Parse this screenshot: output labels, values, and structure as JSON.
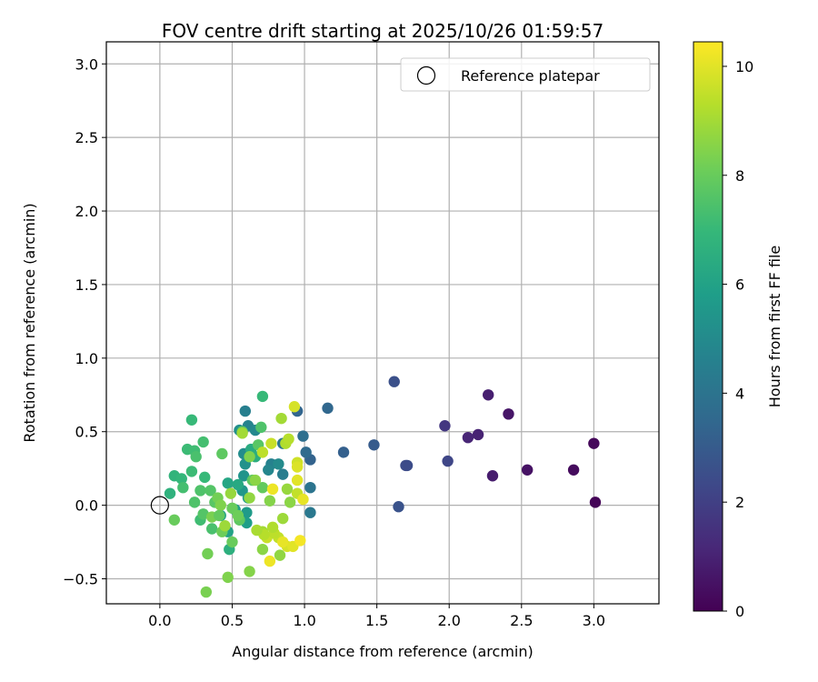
{
  "chart_data": {
    "type": "scatter",
    "title": "FOV centre drift starting at 2025/10/26 01:59:57",
    "xlabel": "Angular distance from reference (arcmin)",
    "ylabel": "Rotation from reference (arcmin)",
    "xlim": [
      -0.37,
      3.45
    ],
    "ylim": [
      -0.67,
      3.15
    ],
    "xticks": [
      0.0,
      0.5,
      1.0,
      1.5,
      2.0,
      2.5,
      3.0
    ],
    "xtick_labels": [
      "0.0",
      "0.5",
      "1.0",
      "1.5",
      "2.0",
      "2.5",
      "3.0"
    ],
    "yticks": [
      -0.5,
      0.0,
      0.5,
      1.0,
      1.5,
      2.0,
      2.5,
      3.0
    ],
    "ytick_labels": [
      "−0.5",
      "0.0",
      "0.5",
      "1.0",
      "1.5",
      "2.0",
      "2.5",
      "3.0"
    ],
    "grid": true,
    "legend": {
      "label": "Reference platepar",
      "position": "top-right"
    },
    "reference_point": {
      "x": 0.0,
      "y": 0.0
    },
    "colorbar": {
      "label": "Hours from first FF file",
      "range": [
        0,
        10.45
      ],
      "ticks": [
        0,
        2,
        4,
        6,
        8,
        10
      ],
      "tick_labels": [
        "0",
        "2",
        "4",
        "6",
        "8",
        "10"
      ],
      "colormap": "viridis"
    },
    "colormap_stops": [
      "#440154",
      "#482878",
      "#3e4989",
      "#31688e",
      "#26828e",
      "#1f9e89",
      "#35b779",
      "#6ece58",
      "#b5de2b",
      "#fde725"
    ],
    "points": [
      {
        "x": 3.01,
        "y": 0.02,
        "h": 0.1
      },
      {
        "x": 3.0,
        "y": 0.42,
        "h": 0.2
      },
      {
        "x": 2.86,
        "y": 0.24,
        "h": 0.3
      },
      {
        "x": 2.54,
        "y": 0.24,
        "h": 0.5
      },
      {
        "x": 2.41,
        "y": 0.62,
        "h": 0.6
      },
      {
        "x": 2.3,
        "y": 0.2,
        "h": 0.8
      },
      {
        "x": 2.27,
        "y": 0.75,
        "h": 0.9
      },
      {
        "x": 2.2,
        "y": 0.48,
        "h": 1.0
      },
      {
        "x": 2.13,
        "y": 0.46,
        "h": 1.1
      },
      {
        "x": 1.97,
        "y": 0.54,
        "h": 1.7
      },
      {
        "x": 1.99,
        "y": 0.3,
        "h": 2.2
      },
      {
        "x": 1.71,
        "y": 0.27,
        "h": 2.5
      },
      {
        "x": 1.62,
        "y": 0.84,
        "h": 2.6
      },
      {
        "x": 1.7,
        "y": 0.27,
        "h": 2.4
      },
      {
        "x": 1.65,
        "y": -0.01,
        "h": 2.7
      },
      {
        "x": 1.48,
        "y": 0.41,
        "h": 3.0
      },
      {
        "x": 1.27,
        "y": 0.36,
        "h": 3.2
      },
      {
        "x": 1.16,
        "y": 0.66,
        "h": 3.5
      },
      {
        "x": 1.04,
        "y": 0.31,
        "h": 3.3
      },
      {
        "x": 1.01,
        "y": 0.36,
        "h": 3.6
      },
      {
        "x": 0.99,
        "y": 0.47,
        "h": 3.8
      },
      {
        "x": 0.95,
        "y": 0.64,
        "h": 3.4
      },
      {
        "x": 1.04,
        "y": 0.12,
        "h": 4.0
      },
      {
        "x": 1.04,
        "y": -0.05,
        "h": 4.2
      },
      {
        "x": 0.85,
        "y": 0.42,
        "h": 4.1
      },
      {
        "x": 0.85,
        "y": 0.21,
        "h": 4.4
      },
      {
        "x": 0.77,
        "y": 0.28,
        "h": 4.6
      },
      {
        "x": 0.75,
        "y": 0.24,
        "h": 4.8
      },
      {
        "x": 0.82,
        "y": 0.28,
        "h": 5.0
      },
      {
        "x": 0.59,
        "y": 0.64,
        "h": 4.5
      },
      {
        "x": 0.61,
        "y": 0.54,
        "h": 4.7
      },
      {
        "x": 0.55,
        "y": 0.51,
        "h": 5.2
      },
      {
        "x": 0.66,
        "y": 0.51,
        "h": 4.9
      },
      {
        "x": 0.58,
        "y": 0.35,
        "h": 5.1
      },
      {
        "x": 0.59,
        "y": 0.28,
        "h": 5.3
      },
      {
        "x": 0.58,
        "y": 0.2,
        "h": 5.4
      },
      {
        "x": 0.57,
        "y": 0.1,
        "h": 5.5
      },
      {
        "x": 0.61,
        "y": 0.05,
        "h": 5.6
      },
      {
        "x": 0.6,
        "y": -0.05,
        "h": 5.7
      },
      {
        "x": 0.6,
        "y": -0.12,
        "h": 5.8
      },
      {
        "x": 0.52,
        "y": -0.03,
        "h": 5.9
      },
      {
        "x": 0.47,
        "y": -0.18,
        "h": 6.0
      },
      {
        "x": 0.42,
        "y": -0.07,
        "h": 6.1
      },
      {
        "x": 0.47,
        "y": 0.15,
        "h": 6.2
      },
      {
        "x": 0.54,
        "y": 0.14,
        "h": 6.3
      },
      {
        "x": 0.63,
        "y": 0.38,
        "h": 6.4
      },
      {
        "x": 0.66,
        "y": 0.33,
        "h": 6.5
      },
      {
        "x": 0.48,
        "y": -0.3,
        "h": 6.6
      },
      {
        "x": 0.07,
        "y": 0.08,
        "h": 6.7
      },
      {
        "x": 0.1,
        "y": 0.2,
        "h": 6.8
      },
      {
        "x": 0.15,
        "y": 0.18,
        "h": 6.9
      },
      {
        "x": 0.22,
        "y": 0.58,
        "h": 7.0
      },
      {
        "x": 0.19,
        "y": 0.38,
        "h": 7.1
      },
      {
        "x": 0.24,
        "y": 0.37,
        "h": 7.2
      },
      {
        "x": 0.3,
        "y": 0.43,
        "h": 7.3
      },
      {
        "x": 0.25,
        "y": 0.33,
        "h": 7.4
      },
      {
        "x": 0.22,
        "y": 0.23,
        "h": 7.1
      },
      {
        "x": 0.31,
        "y": 0.19,
        "h": 7.0
      },
      {
        "x": 0.16,
        "y": 0.12,
        "h": 7.3
      },
      {
        "x": 0.28,
        "y": 0.1,
        "h": 7.5
      },
      {
        "x": 0.35,
        "y": 0.1,
        "h": 7.6
      },
      {
        "x": 0.38,
        "y": 0.02,
        "h": 7.7
      },
      {
        "x": 0.28,
        "y": -0.1,
        "h": 7.2
      },
      {
        "x": 0.36,
        "y": -0.16,
        "h": 7.4
      },
      {
        "x": 0.3,
        "y": -0.06,
        "h": 7.6
      },
      {
        "x": 0.43,
        "y": 0.35,
        "h": 7.8
      },
      {
        "x": 0.71,
        "y": 0.74,
        "h": 7.0
      },
      {
        "x": 0.7,
        "y": 0.53,
        "h": 7.5
      },
      {
        "x": 0.57,
        "y": 0.5,
        "h": 7.9
      },
      {
        "x": 0.68,
        "y": 0.41,
        "h": 7.7
      },
      {
        "x": 0.64,
        "y": 0.17,
        "h": 7.8
      },
      {
        "x": 0.71,
        "y": 0.12,
        "h": 7.9
      },
      {
        "x": 0.5,
        "y": -0.02,
        "h": 8.0
      },
      {
        "x": 0.55,
        "y": -0.1,
        "h": 7.8
      },
      {
        "x": 0.5,
        "y": -0.25,
        "h": 8.0
      },
      {
        "x": 0.43,
        "y": -0.18,
        "h": 8.1
      },
      {
        "x": 0.33,
        "y": -0.33,
        "h": 8.2
      },
      {
        "x": 0.32,
        "y": -0.59,
        "h": 8.3
      },
      {
        "x": 0.47,
        "y": -0.49,
        "h": 8.4
      },
      {
        "x": 0.62,
        "y": -0.45,
        "h": 8.5
      },
      {
        "x": 0.71,
        "y": -0.3,
        "h": 8.6
      },
      {
        "x": 0.83,
        "y": -0.34,
        "h": 8.7
      },
      {
        "x": 0.1,
        "y": -0.1,
        "h": 8.0
      },
      {
        "x": 0.76,
        "y": 0.03,
        "h": 8.5
      },
      {
        "x": 0.88,
        "y": 0.11,
        "h": 8.8
      },
      {
        "x": 0.9,
        "y": 0.02,
        "h": 8.6
      },
      {
        "x": 0.85,
        "y": -0.09,
        "h": 8.9
      },
      {
        "x": 0.84,
        "y": 0.59,
        "h": 9.0
      },
      {
        "x": 0.87,
        "y": 0.42,
        "h": 9.2
      },
      {
        "x": 0.89,
        "y": 0.45,
        "h": 9.3
      },
      {
        "x": 0.95,
        "y": 0.08,
        "h": 9.5
      },
      {
        "x": 0.71,
        "y": 0.36,
        "h": 9.4
      },
      {
        "x": 0.77,
        "y": 0.42,
        "h": 9.6
      },
      {
        "x": 0.93,
        "y": 0.67,
        "h": 9.8
      },
      {
        "x": 0.95,
        "y": 0.29,
        "h": 9.7
      },
      {
        "x": 0.95,
        "y": 0.26,
        "h": 9.9
      },
      {
        "x": 0.95,
        "y": 0.17,
        "h": 10.0
      },
      {
        "x": 0.99,
        "y": 0.04,
        "h": 10.1
      },
      {
        "x": 0.78,
        "y": 0.11,
        "h": 10.2
      },
      {
        "x": 0.82,
        "y": -0.22,
        "h": 9.5
      },
      {
        "x": 0.88,
        "y": -0.28,
        "h": 9.8
      },
      {
        "x": 0.92,
        "y": -0.28,
        "h": 10.0
      },
      {
        "x": 0.85,
        "y": -0.25,
        "h": 10.1
      },
      {
        "x": 0.97,
        "y": -0.24,
        "h": 10.3
      },
      {
        "x": 0.76,
        "y": -0.38,
        "h": 10.2
      },
      {
        "x": 0.74,
        "y": -0.22,
        "h": 9.6
      },
      {
        "x": 0.79,
        "y": -0.19,
        "h": 9.4
      },
      {
        "x": 0.78,
        "y": -0.15,
        "h": 9.2
      },
      {
        "x": 0.71,
        "y": -0.18,
        "h": 9.0
      },
      {
        "x": 0.72,
        "y": -0.2,
        "h": 9.3
      },
      {
        "x": 0.67,
        "y": -0.17,
        "h": 9.1
      },
      {
        "x": 0.45,
        "y": -0.14,
        "h": 8.9
      },
      {
        "x": 0.49,
        "y": 0.08,
        "h": 8.8
      },
      {
        "x": 0.4,
        "y": 0.05,
        "h": 8.2
      },
      {
        "x": 0.42,
        "y": 0.0,
        "h": 8.4
      },
      {
        "x": 0.36,
        "y": -0.08,
        "h": 8.3
      },
      {
        "x": 0.57,
        "y": 0.49,
        "h": 9.0
      },
      {
        "x": 0.62,
        "y": 0.05,
        "h": 8.7
      },
      {
        "x": 0.66,
        "y": 0.17,
        "h": 8.6
      },
      {
        "x": 0.62,
        "y": 0.33,
        "h": 8.4
      },
      {
        "x": 0.54,
        "y": -0.07,
        "h": 8.1
      },
      {
        "x": 0.41,
        "y": -0.07,
        "h": 7.9
      },
      {
        "x": 0.24,
        "y": 0.02,
        "h": 7.5
      }
    ]
  }
}
